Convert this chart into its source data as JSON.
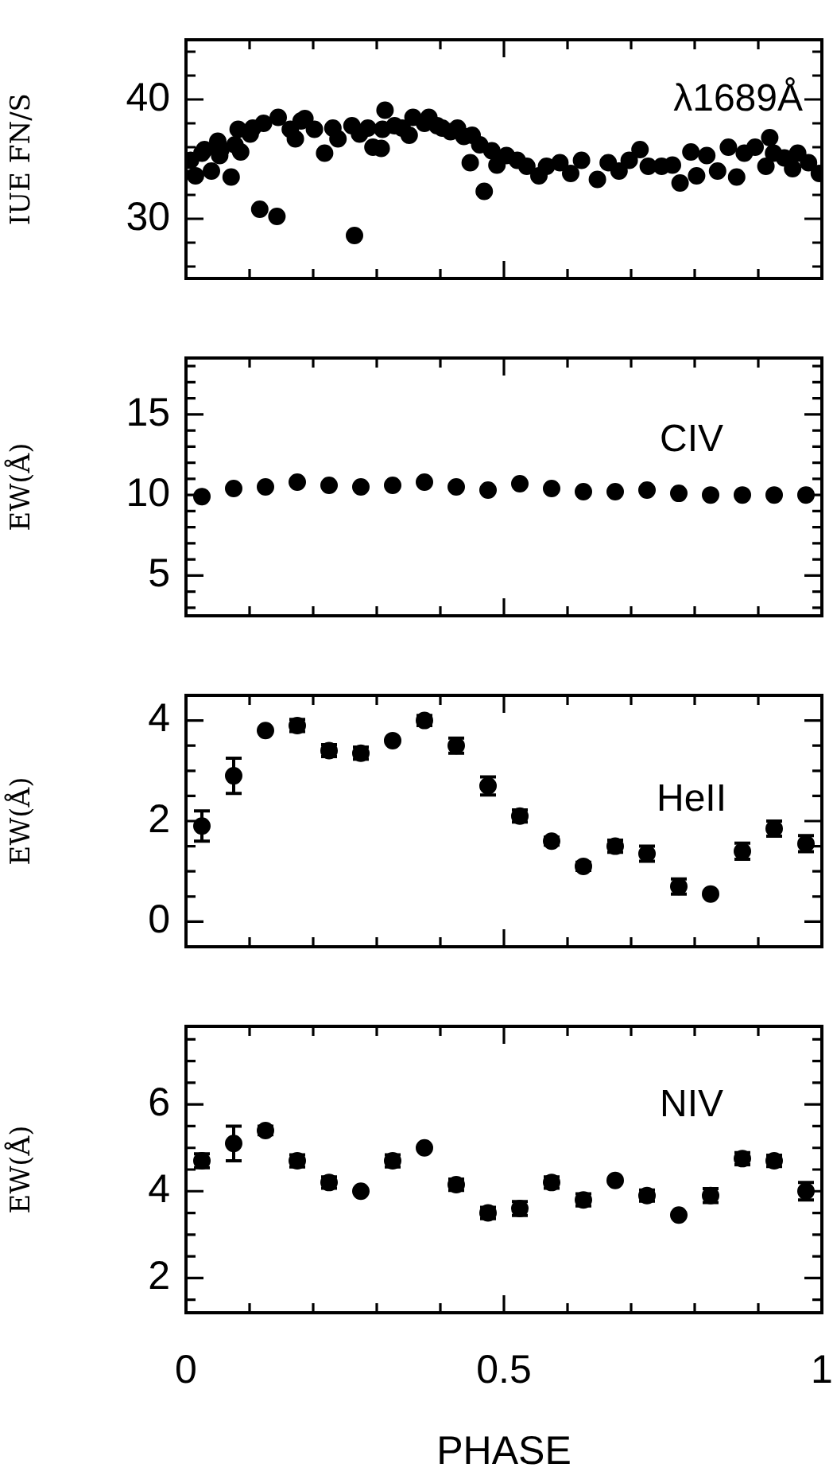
{
  "chart_data": [
    {
      "type": "scatter",
      "ylabel": "IUE FN/S",
      "annotations": [
        "λ1689Å"
      ],
      "marker": "circle",
      "tick_labels": "y",
      "xlim": [
        0,
        1
      ],
      "xticks": [
        0,
        {
          "value": 0.1,
          "label": null
        },
        {
          "value": 0.2,
          "label": null
        },
        {
          "value": 0.3,
          "label": null
        },
        {
          "value": 0.4,
          "label": null
        },
        0.5,
        {
          "value": 0.6,
          "label": null
        },
        {
          "value": 0.7,
          "label": null
        },
        {
          "value": 0.8,
          "label": null
        },
        {
          "value": 0.9,
          "label": null
        },
        1
      ],
      "ylim": [
        25,
        45
      ],
      "yticks": [
        {
          "value": 26,
          "label": null
        },
        {
          "value": 28,
          "label": null
        },
        30,
        {
          "value": 32,
          "label": null
        },
        {
          "value": 34,
          "label": null
        },
        {
          "value": 36,
          "label": null
        },
        {
          "value": 38,
          "label": null
        },
        40,
        {
          "value": 42,
          "label": null
        },
        {
          "value": 44,
          "label": null
        }
      ],
      "series": [
        {
          "color": "#000000",
          "x": [
            0.007,
            0.015,
            0.025,
            0.029,
            0.04,
            0.05,
            0.053,
            0.055,
            0.071,
            0.077,
            0.082,
            0.086,
            0.101,
            0.105,
            0.116,
            0.122,
            0.143,
            0.145,
            0.164,
            0.172,
            0.181,
            0.187,
            0.202,
            0.218,
            0.231,
            0.239,
            0.261,
            0.265,
            0.273,
            0.286,
            0.294,
            0.307,
            0.309,
            0.313,
            0.328,
            0.34,
            0.351,
            0.357,
            0.375,
            0.382,
            0.395,
            0.403,
            0.416,
            0.427,
            0.437,
            0.447,
            0.45,
            0.462,
            0.469,
            0.481,
            0.489,
            0.504,
            0.521,
            0.536,
            0.555,
            0.567,
            0.588,
            0.605,
            0.622,
            0.647,
            0.664,
            0.681,
            0.697,
            0.714,
            0.727,
            0.748,
            0.765,
            0.777,
            0.794,
            0.803,
            0.819,
            0.836,
            0.853,
            0.866,
            0.878,
            0.895,
            0.912,
            0.918,
            0.924,
            0.941,
            0.954,
            0.962,
            0.979,
            0.996
          ],
          "values": [
            34.9,
            33.6,
            35.5,
            35.8,
            34.0,
            36.5,
            35.3,
            35.8,
            33.5,
            36.2,
            37.5,
            35.6,
            37.1,
            37.6,
            30.8,
            38.0,
            30.2,
            38.5,
            37.5,
            36.7,
            38.2,
            38.4,
            37.5,
            35.5,
            37.6,
            36.7,
            37.8,
            28.6,
            37.1,
            37.6,
            36.0,
            35.9,
            37.5,
            39.1,
            37.8,
            37.6,
            37.0,
            38.5,
            38.0,
            38.5,
            37.8,
            37.6,
            37.3,
            37.6,
            36.9,
            34.7,
            37.0,
            36.2,
            32.3,
            35.7,
            34.5,
            35.3,
            34.9,
            34.4,
            33.6,
            34.4,
            34.7,
            33.8,
            34.9,
            33.3,
            34.7,
            34.0,
            34.9,
            35.8,
            34.4,
            34.4,
            34.5,
            33.0,
            35.6,
            33.6,
            35.3,
            34.0,
            36.0,
            33.5,
            35.5,
            36.0,
            34.4,
            36.8,
            35.5,
            35.1,
            34.2,
            35.5,
            34.7,
            33.8
          ]
        }
      ]
    },
    {
      "type": "scatter",
      "ylabel": "EW(Å)",
      "annotations": [
        "CIV"
      ],
      "marker": "circle",
      "tick_labels": "y",
      "xlim": [
        0,
        1
      ],
      "xticks": [
        0,
        {
          "value": 0.1,
          "label": null
        },
        {
          "value": 0.2,
          "label": null
        },
        {
          "value": 0.3,
          "label": null
        },
        {
          "value": 0.4,
          "label": null
        },
        0.5,
        {
          "value": 0.6,
          "label": null
        },
        {
          "value": 0.7,
          "label": null
        },
        {
          "value": 0.8,
          "label": null
        },
        {
          "value": 0.9,
          "label": null
        },
        1
      ],
      "ylim": [
        2.5,
        18.5
      ],
      "yticks": [
        {
          "value": 3,
          "label": null
        },
        {
          "value": 4,
          "label": null
        },
        5,
        {
          "value": 6,
          "label": null
        },
        {
          "value": 7,
          "label": null
        },
        {
          "value": 8,
          "label": null
        },
        {
          "value": 9,
          "label": null
        },
        10,
        {
          "value": 11,
          "label": null
        },
        {
          "value": 12,
          "label": null
        },
        {
          "value": 13,
          "label": null
        },
        {
          "value": 14,
          "label": null
        },
        15,
        {
          "value": 16,
          "label": null
        },
        {
          "value": 17,
          "label": null
        },
        {
          "value": 18,
          "label": null
        }
      ],
      "x": [
        0.025,
        0.075,
        0.125,
        0.175,
        0.225,
        0.275,
        0.325,
        0.375,
        0.425,
        0.475,
        0.525,
        0.575,
        0.625,
        0.675,
        0.725,
        0.775,
        0.825,
        0.875,
        0.925,
        0.975
      ],
      "series": [
        {
          "color": "#000000",
          "values": [
            9.9,
            10.4,
            10.5,
            10.8,
            10.6,
            10.5,
            10.6,
            10.8,
            10.5,
            10.3,
            10.7,
            10.4,
            10.2,
            10.2,
            10.3,
            10.1,
            10.0,
            10.0,
            10.0,
            10.0
          ]
        }
      ]
    },
    {
      "type": "scatter",
      "ylabel": "EW(Å)",
      "annotations": [
        "HeII"
      ],
      "marker": "circle",
      "tick_labels": "y",
      "xlim": [
        0,
        1
      ],
      "xticks": [
        0,
        {
          "value": 0.1,
          "label": null
        },
        {
          "value": 0.2,
          "label": null
        },
        {
          "value": 0.3,
          "label": null
        },
        {
          "value": 0.4,
          "label": null
        },
        0.5,
        {
          "value": 0.6,
          "label": null
        },
        {
          "value": 0.7,
          "label": null
        },
        {
          "value": 0.8,
          "label": null
        },
        {
          "value": 0.9,
          "label": null
        },
        1
      ],
      "ylim": [
        -0.5,
        4.5
      ],
      "yticks": [
        0,
        {
          "value": 0.5,
          "label": null
        },
        {
          "value": 1,
          "label": null
        },
        {
          "value": 1.5,
          "label": null
        },
        2,
        {
          "value": 2.5,
          "label": null
        },
        {
          "value": 3,
          "label": null
        },
        {
          "value": 3.5,
          "label": null
        },
        4
      ],
      "x": [
        0.025,
        0.075,
        0.125,
        0.175,
        0.225,
        0.275,
        0.325,
        0.375,
        0.425,
        0.475,
        0.525,
        0.575,
        0.625,
        0.675,
        0.725,
        0.775,
        0.825,
        0.875,
        0.925,
        0.975
      ],
      "series": [
        {
          "color": "#000000",
          "values": [
            1.9,
            2.9,
            3.8,
            3.9,
            3.4,
            3.35,
            3.6,
            4.0,
            3.5,
            2.7,
            2.1,
            1.6,
            1.1,
            1.5,
            1.35,
            0.7,
            0.55,
            1.4,
            1.85,
            1.55
          ],
          "errors": [
            0.3,
            0.35,
            null,
            0.12,
            0.12,
            0.12,
            null,
            0.1,
            0.15,
            0.18,
            0.12,
            0.08,
            0.08,
            0.12,
            0.15,
            0.15,
            null,
            0.16,
            0.15,
            0.16
          ]
        }
      ]
    },
    {
      "type": "scatter",
      "ylabel": "EW(Å)",
      "xlabel": "PHASE",
      "annotations": [
        "NIV"
      ],
      "marker": "circle",
      "xlim": [
        0,
        1
      ],
      "xticks": [
        0,
        {
          "value": 0.1,
          "label": null
        },
        {
          "value": 0.2,
          "label": null
        },
        {
          "value": 0.3,
          "label": null
        },
        {
          "value": 0.4,
          "label": null
        },
        0.5,
        {
          "value": 0.6,
          "label": null
        },
        {
          "value": 0.7,
          "label": null
        },
        {
          "value": 0.8,
          "label": null
        },
        {
          "value": 0.9,
          "label": null
        },
        1
      ],
      "ylim": [
        1.2,
        7.8
      ],
      "yticks": [
        {
          "value": 1.5,
          "label": null
        },
        2,
        {
          "value": 2.5,
          "label": null
        },
        {
          "value": 3,
          "label": null
        },
        {
          "value": 3.5,
          "label": null
        },
        4,
        {
          "value": 4.5,
          "label": null
        },
        {
          "value": 5,
          "label": null
        },
        {
          "value": 5.5,
          "label": null
        },
        6,
        {
          "value": 6.5,
          "label": null
        },
        {
          "value": 7,
          "label": null
        },
        {
          "value": 7.5,
          "label": null
        }
      ],
      "x": [
        0.025,
        0.075,
        0.125,
        0.175,
        0.225,
        0.275,
        0.325,
        0.375,
        0.425,
        0.475,
        0.525,
        0.575,
        0.625,
        0.675,
        0.725,
        0.775,
        0.825,
        0.875,
        0.925,
        0.975
      ],
      "series": [
        {
          "color": "#000000",
          "values": [
            4.7,
            5.1,
            5.4,
            4.7,
            4.2,
            4.0,
            4.7,
            5.0,
            4.15,
            3.5,
            3.6,
            4.2,
            3.8,
            4.25,
            3.9,
            3.45,
            3.9,
            4.75,
            4.7,
            4.0
          ],
          "errors": [
            0.16,
            0.4,
            0.1,
            0.14,
            0.13,
            null,
            0.14,
            null,
            0.13,
            0.13,
            0.16,
            0.13,
            0.14,
            null,
            0.13,
            null,
            0.16,
            0.14,
            0.13,
            0.2
          ]
        }
      ]
    }
  ]
}
